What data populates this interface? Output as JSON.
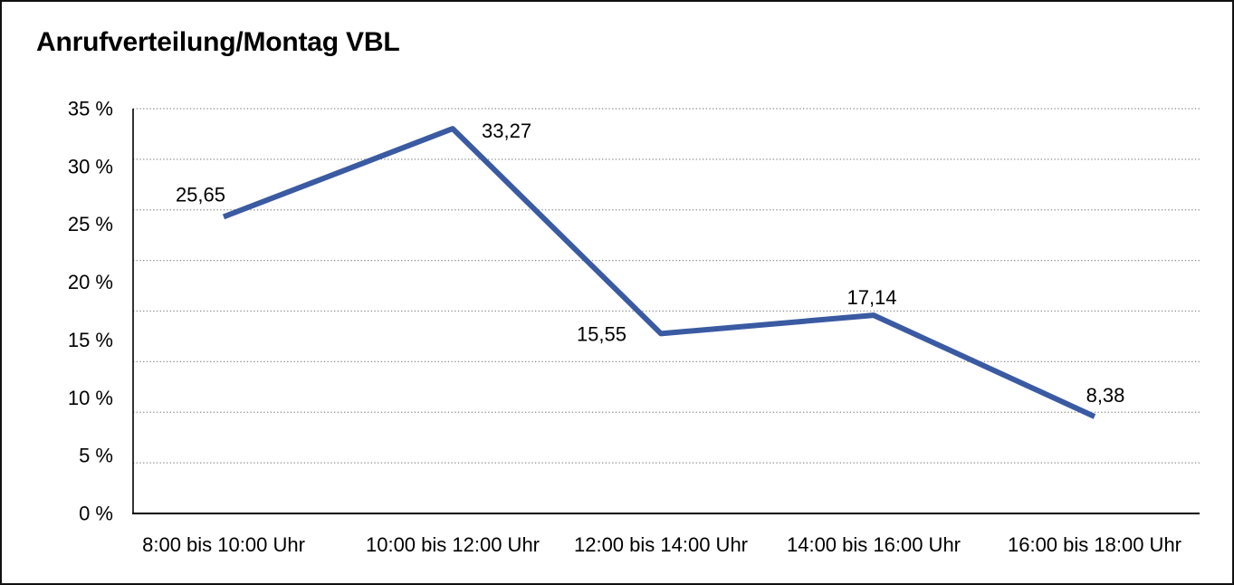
{
  "title": "Anrufverteilung/Montag VBL",
  "chart_data": {
    "type": "line",
    "title": "Anrufverteilung/Montag VBL",
    "categories": [
      "8:00 bis 10:00 Uhr",
      "10:00 bis 12:00 Uhr",
      "12:00 bis 14:00 Uhr",
      "14:00 bis 16:00 Uhr",
      "16:00 bis 18:00 Uhr"
    ],
    "values": [
      25.65,
      33.27,
      15.55,
      17.14,
      8.38
    ],
    "value_labels": [
      "25,65",
      "33,27",
      "15,55",
      "17,14",
      "8,38"
    ],
    "y_tick_labels": [
      "35 %",
      "30 %",
      "25 %",
      "20 %",
      "15 %",
      "10 %",
      "5 %",
      "0 %"
    ],
    "ylim": [
      0,
      35
    ],
    "grid": "horizontal-dotted",
    "grid_divisions": 8,
    "legend": "none",
    "line_color": "#3A5AA2",
    "grid_color": "#8A8A8A",
    "axis_color": "#000000",
    "text_color": "#000000",
    "background": "#FFFFFF"
  }
}
